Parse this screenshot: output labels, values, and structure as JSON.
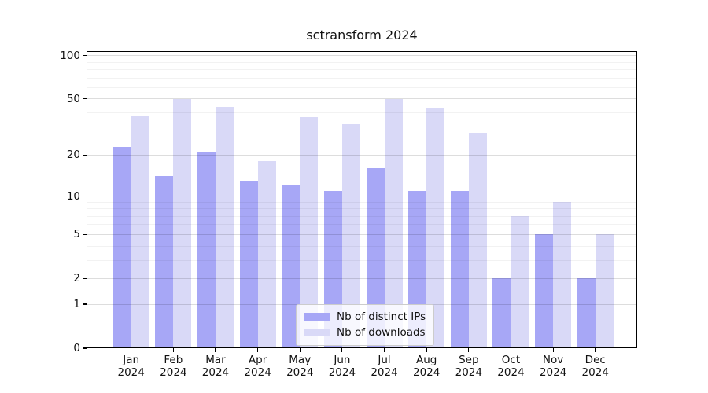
{
  "chart_data": {
    "type": "bar",
    "title": "sctransform 2024",
    "categories": [
      "Jan",
      "Feb",
      "Mar",
      "Apr",
      "May",
      "Jun",
      "Jul",
      "Aug",
      "Sep",
      "Oct",
      "Nov",
      "Dec"
    ],
    "year": "2024",
    "series": [
      {
        "name": "Nb of distinct IPs",
        "color": "#a7a7f6",
        "values": [
          23,
          14,
          21,
          13,
          12,
          11,
          16,
          11,
          11,
          2,
          5,
          2
        ]
      },
      {
        "name": "Nb of downloads",
        "color": "#d9d9f7",
        "values": [
          38,
          50,
          44,
          18,
          37,
          33,
          50,
          43,
          29,
          7,
          9,
          5
        ]
      }
    ],
    "yscale": "log10(1+y)",
    "ylim": [
      0,
      100
    ],
    "yticks_major": [
      0,
      1,
      2,
      5,
      10,
      20,
      50,
      100
    ],
    "yticks_minor": [
      3,
      4,
      6,
      7,
      8,
      9,
      30,
      40,
      60,
      70,
      80,
      90
    ],
    "grid": true,
    "legend_position": "lower center"
  }
}
